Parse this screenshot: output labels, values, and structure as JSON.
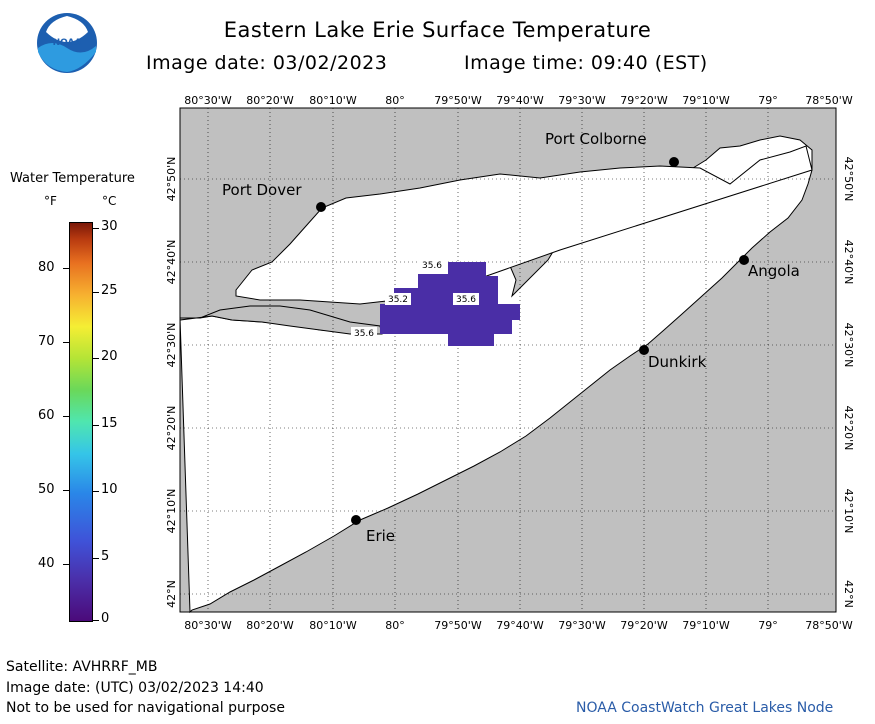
{
  "title": "Eastern Lake Erie Surface Temperature",
  "subtitle": {
    "date_label": "Image date: 03/02/2023",
    "time_label": "Image time: 09:40 (EST)"
  },
  "logo": {
    "text": "NOAA",
    "icon": "noaa-logo"
  },
  "legend": {
    "title": "Water Temperature",
    "unit_f": "°F",
    "unit_c": "°C",
    "f_ticks": [
      "80",
      "70",
      "60",
      "50",
      "40"
    ],
    "c_ticks": [
      "30",
      "25",
      "20",
      "15",
      "10",
      "5",
      "0"
    ],
    "range_c": [
      0,
      30
    ]
  },
  "map": {
    "lon_labels": [
      "80°30'W",
      "80°20'W",
      "80°10'W",
      "80°",
      "79°50'W",
      "79°40'W",
      "79°30'W",
      "79°20'W",
      "79°10'W",
      "79°",
      "78°50'W"
    ],
    "lat_labels": [
      "42°50'N",
      "42°40'N",
      "42°30'N",
      "42°20'N",
      "42°10'N",
      "42°N"
    ],
    "cities": [
      "Port Colborne",
      "Port Dover",
      "Angola",
      "Dunkirk",
      "Erie"
    ],
    "temp_labels": [
      "35.6",
      "35.2",
      "35.6",
      "35.6"
    ],
    "colors": {
      "land": "#c0c0c0",
      "water": "#ffffff",
      "sst_patch": "#4a2ea6"
    }
  },
  "footer": {
    "satellite": "Satellite: AVHRRF_MB",
    "image_date_utc": "Image date: (UTC) 03/02/2023  14:40",
    "disclaimer": "Not to be used for navigational purpose",
    "node": "NOAA CoastWatch Great Lakes Node"
  }
}
